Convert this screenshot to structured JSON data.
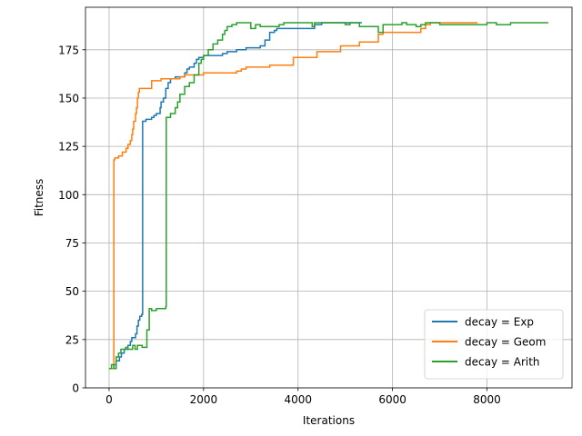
{
  "chart_data": {
    "type": "line",
    "title": "",
    "xlabel": "Iterations",
    "ylabel": "Fitness",
    "xlim": [
      -500,
      9800
    ],
    "ylim": [
      0,
      197
    ],
    "xticks": [
      0,
      2000,
      4000,
      6000,
      8000
    ],
    "yticks": [
      0,
      25,
      50,
      75,
      100,
      125,
      150,
      175
    ],
    "grid": true,
    "legend_position": "lower right",
    "series": [
      {
        "name": "decay = Exp",
        "color": "#1f77b4",
        "x": [
          0,
          50,
          100,
          150,
          220,
          260,
          320,
          400,
          450,
          480,
          560,
          590,
          620,
          650,
          690,
          710,
          720,
          780,
          850,
          900,
          950,
          1000,
          1050,
          1080,
          1100,
          1150,
          1200,
          1250,
          1300,
          1350,
          1400,
          1500,
          1600,
          1650,
          1700,
          1750,
          1800,
          1850,
          1900,
          2000,
          2100,
          2200,
          2400,
          2500,
          2700,
          2800,
          2900,
          3000,
          3100,
          3200,
          3300,
          3400,
          3500,
          3550,
          3600,
          3700,
          4000,
          4300,
          4350,
          4500,
          4800,
          5000,
          5350
        ],
        "y": [
          10,
          10,
          12,
          14,
          16,
          18,
          20,
          22,
          24,
          26,
          28,
          32,
          35,
          37,
          38,
          138,
          138,
          139,
          139,
          140,
          141,
          142,
          142,
          145,
          148,
          150,
          155,
          158,
          160,
          160,
          161,
          161,
          163,
          165,
          166,
          166,
          168,
          170,
          171,
          172,
          172,
          172,
          173,
          174,
          175,
          175,
          176,
          176,
          176,
          177,
          180,
          184,
          185,
          186,
          186,
          186,
          186,
          186,
          188,
          189,
          189,
          189,
          189
        ]
      },
      {
        "name": "decay = Geom",
        "color": "#ff7f0e",
        "x": [
          0,
          40,
          80,
          100,
          120,
          200,
          280,
          360,
          400,
          450,
          480,
          500,
          520,
          560,
          580,
          600,
          620,
          640,
          680,
          900,
          1100,
          1200,
          1300,
          1500,
          1600,
          1700,
          1800,
          1900,
          2000,
          2500,
          2700,
          2800,
          2900,
          3300,
          3400,
          3900,
          4000,
          4200,
          4400,
          4700,
          4900,
          5300,
          5700,
          5800,
          6500,
          6600,
          6700,
          6800,
          7800
        ],
        "y": [
          10,
          10,
          10,
          118,
          119,
          120,
          122,
          124,
          126,
          128,
          131,
          134,
          138,
          142,
          145,
          150,
          153,
          155,
          155,
          159,
          160,
          160,
          160,
          161,
          162,
          162,
          162,
          162,
          163,
          163,
          164,
          165,
          166,
          166,
          167,
          171,
          171,
          171,
          174,
          174,
          177,
          179,
          183,
          184,
          184,
          186,
          188,
          189,
          189
        ]
      },
      {
        "name": "decay = Arith",
        "color": "#2ca02c",
        "x": [
          0,
          50,
          100,
          150,
          200,
          250,
          300,
          350,
          400,
          500,
          550,
          600,
          700,
          800,
          850,
          900,
          1000,
          1100,
          1200,
          1210,
          1300,
          1400,
          1450,
          1500,
          1600,
          1700,
          1800,
          1900,
          1950,
          2000,
          2100,
          2200,
          2300,
          2400,
          2450,
          2500,
          2600,
          2700,
          2800,
          2900,
          3000,
          3100,
          3200,
          3300,
          3400,
          3600,
          3700,
          3800,
          4000,
          4200,
          4300,
          4350,
          4500,
          4800,
          5000,
          5100,
          5300,
          5700,
          5800,
          6000,
          6200,
          6300,
          6500,
          6600,
          6700,
          6800,
          7000,
          7200,
          8000,
          8200,
          8500,
          9300
        ],
        "y": [
          10,
          12,
          10,
          16,
          18,
          20,
          20,
          21,
          20,
          22,
          20,
          22,
          21,
          30,
          41,
          40,
          41,
          41,
          42,
          140,
          142,
          145,
          148,
          152,
          156,
          158,
          162,
          168,
          170,
          172,
          175,
          178,
          180,
          183,
          185,
          187,
          188,
          189,
          189,
          189,
          186,
          188,
          187,
          187,
          187,
          188,
          189,
          189,
          189,
          189,
          187,
          189,
          189,
          189,
          188,
          189,
          187,
          184,
          188,
          188,
          189,
          188,
          187,
          188,
          189,
          189,
          188,
          188,
          189,
          188,
          189,
          189
        ]
      }
    ]
  }
}
